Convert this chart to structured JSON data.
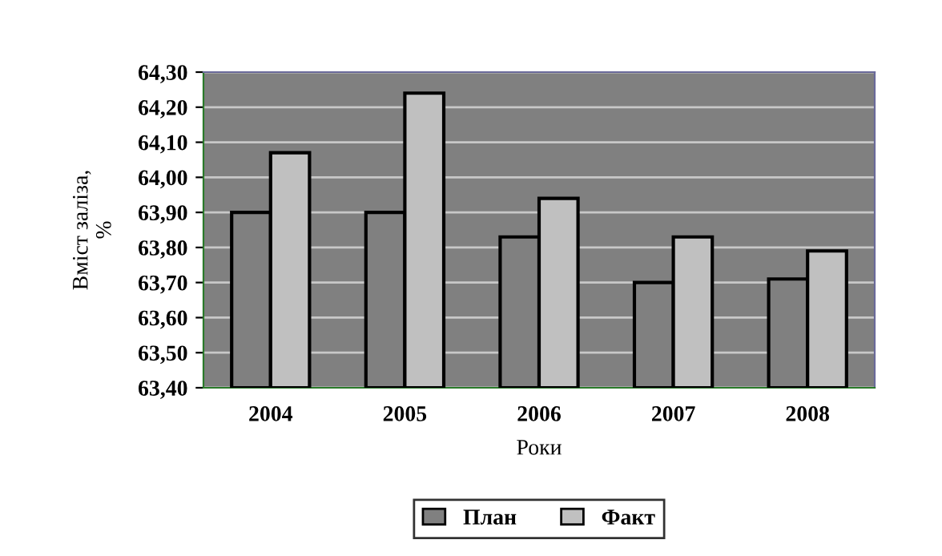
{
  "chart_data": {
    "type": "bar",
    "xlabel": "Роки",
    "ylabel": "Вміст заліза,\n%",
    "categories": [
      "2004",
      "2005",
      "2006",
      "2007",
      "2008"
    ],
    "series": [
      {
        "name": "План",
        "color": "#808080",
        "values": [
          63.9,
          63.9,
          63.83,
          63.7,
          63.71
        ]
      },
      {
        "name": "Факт",
        "color": "#c0c0c0",
        "values": [
          64.07,
          64.24,
          63.94,
          63.83,
          63.79
        ]
      }
    ],
    "ylim": [
      63.4,
      64.3
    ],
    "yticks": [
      {
        "value": 63.4,
        "label": "63,40"
      },
      {
        "value": 63.5,
        "label": "63,50"
      },
      {
        "value": 63.6,
        "label": "63,60"
      },
      {
        "value": 63.7,
        "label": "63,70"
      },
      {
        "value": 63.8,
        "label": "63,80"
      },
      {
        "value": 63.9,
        "label": "63,90"
      },
      {
        "value": 64.0,
        "label": "64,00"
      },
      {
        "value": 64.1,
        "label": "64,10"
      },
      {
        "value": 64.2,
        "label": "64,20"
      },
      {
        "value": 64.3,
        "label": "64,30"
      }
    ],
    "grid": "y",
    "legend": "bottom"
  }
}
